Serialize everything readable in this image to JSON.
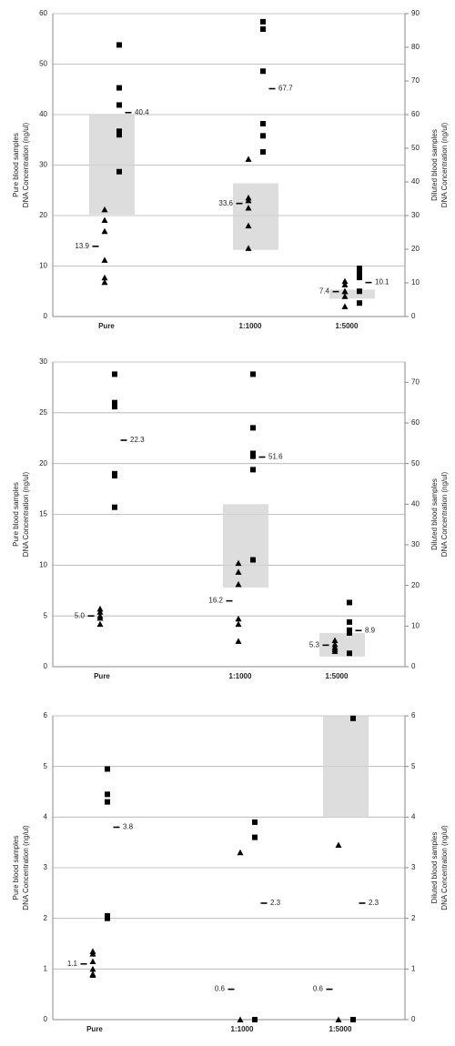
{
  "chart_data": [
    {
      "type": "scatter",
      "categories": [
        "Pure",
        "1:1000",
        "1:5000"
      ],
      "y_label": [
        "Pure blood samples",
        "DNA Concentration (ng/ul)"
      ],
      "y2_label": [
        "Diluted blood samples",
        "DNA Concentration (ng/ul)"
      ],
      "ylim": [
        0,
        60
      ],
      "yticks": [
        0,
        10,
        20,
        30,
        40,
        50,
        60
      ],
      "y2lim": [
        0,
        90
      ],
      "y2ticks": [
        0,
        10,
        20,
        30,
        40,
        50,
        60,
        70,
        80,
        90
      ],
      "grid": true,
      "color": "#000000",
      "box_color": "#d4d4d4",
      "groups": [
        {
          "axis": "y",
          "triangles": [
            21.2,
            19.1,
            16.9,
            11.2,
            7.7,
            6.8
          ],
          "squares": [
            53.8,
            45.3,
            41.9,
            36.7,
            36,
            28.7
          ],
          "means": [
            13.9,
            40.4
          ],
          "mean_labels": [
            "13.9",
            "40.4"
          ],
          "box": [
            20.2,
            40
          ]
        },
        {
          "axis": "y2",
          "triangles": [
            46.8,
            35.3,
            34.5,
            32.3,
            27,
            20.3
          ],
          "squares": [
            87.6,
            85.4,
            72.9,
            57.3,
            53.7,
            48.9
          ],
          "means": [
            33.6,
            67.7
          ],
          "mean_labels": [
            "33.6",
            "67.7"
          ],
          "box": [
            19.8,
            39.6
          ]
        },
        {
          "axis": "y2",
          "triangles": [
            10.5,
            9.5,
            7.5,
            7.5,
            6,
            3
          ],
          "squares": [
            14.3,
            12.8,
            11.6,
            7.5,
            4
          ],
          "means": [
            7.4,
            10.1
          ],
          "mean_labels": [
            "7.4",
            "10.1"
          ],
          "box": [
            5.3,
            8
          ]
        }
      ]
    },
    {
      "type": "scatter",
      "categories": [
        "Pure",
        "1:1000",
        "1:5000"
      ],
      "y_label": [
        "Pure blood samples",
        "DNA Concentration (ng/ul)"
      ],
      "y2_label": [
        "Diluted blood samples",
        "DNA Concentration (ng/ul)"
      ],
      "ylim": [
        0,
        30
      ],
      "yticks": [
        0,
        5,
        10,
        15,
        20,
        25,
        30
      ],
      "y2lim": [
        0,
        75
      ],
      "y2ticks": [
        0,
        10,
        20,
        30,
        40,
        50,
        60,
        70
      ],
      "grid": true,
      "color": "#000000",
      "box_color": "#d4d4d4",
      "groups": [
        {
          "axis": "y",
          "triangles": [
            5.7,
            5.4,
            5,
            4.8,
            4.2
          ],
          "squares": [
            28.8,
            26,
            25.6,
            19,
            18.8,
            15.7
          ],
          "means": [
            5,
            22.3
          ],
          "mean_labels": [
            "5.0",
            "22.3"
          ]
        },
        {
          "axis": "y2",
          "triangles": [
            25.5,
            23.3,
            20.3,
            11.8,
            10.5,
            6.3
          ],
          "squares": [
            72,
            58.8,
            52.5,
            51.8,
            48.5,
            26.3
          ],
          "means": [
            16.2,
            51.6
          ],
          "mean_labels": [
            "16.2",
            "51.6"
          ],
          "box": [
            19.5,
            40
          ]
        },
        {
          "axis": "y2",
          "triangles": [
            6.5,
            5.5,
            4.8,
            4.3,
            3.8
          ],
          "squares": [
            15.8,
            11,
            9,
            8.3,
            3.3
          ],
          "means": [
            5.3,
            8.9
          ],
          "mean_labels": [
            "5.3",
            "8.9"
          ],
          "box": [
            2.5,
            8.3
          ]
        }
      ]
    },
    {
      "type": "scatter",
      "categories": [
        "Pure",
        "1:1000",
        "1:5000"
      ],
      "y_label": [
        "Pure blood samples",
        "DNA Concentration (ng/ul)"
      ],
      "y2_label": [
        "Diluted blood samples",
        "DNA Concentration (ng/ul)"
      ],
      "ylim": [
        0,
        6
      ],
      "yticks": [
        0,
        1,
        2,
        3,
        4,
        5,
        6
      ],
      "y2lim": [
        0,
        6
      ],
      "y2ticks": [
        0,
        1,
        2,
        3,
        4,
        5,
        6
      ],
      "grid": true,
      "color": "#000000",
      "box_color": "#d4d4d4",
      "groups": [
        {
          "axis": "y",
          "triangles": [
            1.35,
            1.3,
            1.15,
            1,
            0.9,
            0.88
          ],
          "squares": [
            4.95,
            4.45,
            4.3,
            2.05,
            2
          ],
          "means": [
            1.1,
            3.8
          ],
          "mean_labels": [
            "1.1",
            "3.8"
          ]
        },
        {
          "axis": "y2",
          "triangles": [
            3.3,
            0
          ],
          "squares": [
            3.9,
            3.6,
            0
          ],
          "means": [
            0.6,
            2.3
          ],
          "mean_labels": [
            "0.6",
            "2.3"
          ]
        },
        {
          "axis": "y2",
          "triangles": [
            3.45,
            0
          ],
          "squares": [
            5.95,
            0
          ],
          "means": [
            0.6,
            2.3
          ],
          "mean_labels": [
            "0.6",
            "2.3"
          ],
          "box": [
            4,
            6
          ]
        }
      ]
    }
  ]
}
